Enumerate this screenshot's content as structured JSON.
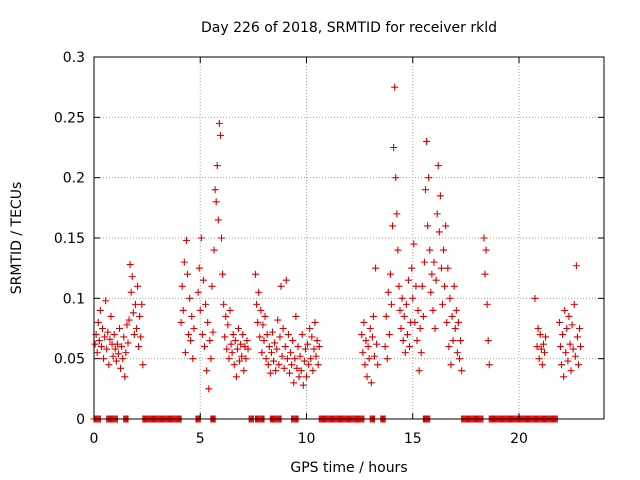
{
  "chart_data": {
    "type": "scatter",
    "title": "Day 226 of 2018, SRMTID for receiver rkld",
    "xlabel": "GPS time / hours",
    "ylabel": "SRMTID / TECUs",
    "xlim": [
      0,
      24
    ],
    "ylim": [
      0,
      0.3
    ],
    "xticks": [
      0,
      5,
      10,
      15,
      20
    ],
    "xtick_labels": [
      "0",
      "5",
      "10",
      "15",
      "20"
    ],
    "yticks": [
      0,
      0.05,
      0.1,
      0.15,
      0.2,
      0.25,
      0.3
    ],
    "ytick_labels": [
      "0",
      "0.05",
      "0.1",
      "0.15",
      "0.2",
      "0.25",
      "0.3"
    ],
    "grid": true,
    "marker": "+",
    "series": [
      {
        "name": "SRMTID",
        "color": "#dd0000",
        "points": [
          [
            0.05,
            0.062
          ],
          [
            0.1,
            0.07
          ],
          [
            0.15,
            0.055
          ],
          [
            0.2,
            0.08
          ],
          [
            0.25,
            0.065
          ],
          [
            0.3,
            0.09
          ],
          [
            0.35,
            0.06
          ],
          [
            0.4,
            0.075
          ],
          [
            0.45,
            0.05
          ],
          [
            0.5,
            0.068
          ],
          [
            0.55,
            0.098
          ],
          [
            0.6,
            0.058
          ],
          [
            0.65,
            0.072
          ],
          [
            0.7,
            0.045
          ],
          [
            0.75,
            0.066
          ],
          [
            0.8,
            0.085
          ],
          [
            0.85,
            0.062
          ],
          [
            0.9,
            0.052
          ],
          [
            0.95,
            0.07
          ],
          [
            1.0,
            0.058
          ],
          [
            1.05,
            0.048
          ],
          [
            1.1,
            0.062
          ],
          [
            1.15,
            0.054
          ],
          [
            1.2,
            0.075
          ],
          [
            1.25,
            0.042
          ],
          [
            1.3,
            0.06
          ],
          [
            1.35,
            0.05
          ],
          [
            1.4,
            0.068
          ],
          [
            1.45,
            0.035
          ],
          [
            1.5,
            0.055
          ],
          [
            1.55,
            0.078
          ],
          [
            1.6,
            0.063
          ],
          [
            1.65,
            0.082
          ],
          [
            1.7,
            0.128
          ],
          [
            1.75,
            0.105
          ],
          [
            1.8,
            0.118
          ],
          [
            1.85,
            0.088
          ],
          [
            1.9,
            0.07
          ],
          [
            1.95,
            0.095
          ],
          [
            2.0,
            0.075
          ],
          [
            2.05,
            0.11
          ],
          [
            2.1,
            0.06
          ],
          [
            2.15,
            0.085
          ],
          [
            2.2,
            0.068
          ],
          [
            2.25,
            0.095
          ],
          [
            2.3,
            0.045
          ],
          [
            4.1,
            0.08
          ],
          [
            4.15,
            0.11
          ],
          [
            4.2,
            0.09
          ],
          [
            4.25,
            0.13
          ],
          [
            4.3,
            0.055
          ],
          [
            4.35,
            0.148
          ],
          [
            4.4,
            0.12
          ],
          [
            4.45,
            0.07
          ],
          [
            4.5,
            0.1
          ],
          [
            4.55,
            0.065
          ],
          [
            4.6,
            0.085
          ],
          [
            4.65,
            0.05
          ],
          [
            4.7,
            0.075
          ],
          [
            4.9,
            0.105
          ],
          [
            4.95,
            0.125
          ],
          [
            5.0,
            0.09
          ],
          [
            5.05,
            0.15
          ],
          [
            5.1,
            0.07
          ],
          [
            5.15,
            0.115
          ],
          [
            5.2,
            0.06
          ],
          [
            5.25,
            0.095
          ],
          [
            5.3,
            0.04
          ],
          [
            5.35,
            0.08
          ],
          [
            5.4,
            0.025
          ],
          [
            5.45,
            0.065
          ],
          [
            5.5,
            0.05
          ],
          [
            5.55,
            0.11
          ],
          [
            5.6,
            0.072
          ],
          [
            5.65,
            0.14
          ],
          [
            5.7,
            0.19
          ],
          [
            5.75,
            0.18
          ],
          [
            5.8,
            0.21
          ],
          [
            5.85,
            0.165
          ],
          [
            5.9,
            0.245
          ],
          [
            5.95,
            0.235
          ],
          [
            6.0,
            0.15
          ],
          [
            6.05,
            0.12
          ],
          [
            6.1,
            0.095
          ],
          [
            6.15,
            0.068
          ],
          [
            6.2,
            0.085
          ],
          [
            6.25,
            0.058
          ],
          [
            6.3,
            0.078
          ],
          [
            6.35,
            0.05
          ],
          [
            6.4,
            0.09
          ],
          [
            6.45,
            0.062
          ],
          [
            6.5,
            0.055
          ],
          [
            6.55,
            0.07
          ],
          [
            6.6,
            0.045
          ],
          [
            6.65,
            0.065
          ],
          [
            6.7,
            0.035
          ],
          [
            6.75,
            0.058
          ],
          [
            6.8,
            0.075
          ],
          [
            6.85,
            0.048
          ],
          [
            6.9,
            0.062
          ],
          [
            6.95,
            0.052
          ],
          [
            7.0,
            0.07
          ],
          [
            7.05,
            0.04
          ],
          [
            7.1,
            0.06
          ],
          [
            7.15,
            0.05
          ],
          [
            7.2,
            0.065
          ],
          [
            7.25,
            0.058
          ],
          [
            7.6,
            0.12
          ],
          [
            7.65,
            0.095
          ],
          [
            7.7,
            0.08
          ],
          [
            7.75,
            0.105
          ],
          [
            7.8,
            0.068
          ],
          [
            7.85,
            0.09
          ],
          [
            7.9,
            0.055
          ],
          [
            7.95,
            0.078
          ],
          [
            8.0,
            0.065
          ],
          [
            8.05,
            0.085
          ],
          [
            8.1,
            0.05
          ],
          [
            8.15,
            0.07
          ],
          [
            8.2,
            0.045
          ],
          [
            8.25,
            0.06
          ],
          [
            8.3,
            0.038
          ],
          [
            8.35,
            0.055
          ],
          [
            8.4,
            0.072
          ],
          [
            8.45,
            0.048
          ],
          [
            8.5,
            0.063
          ],
          [
            8.55,
            0.04
          ],
          [
            8.6,
            0.058
          ],
          [
            8.65,
            0.082
          ],
          [
            8.7,
            0.045
          ],
          [
            8.75,
            0.068
          ],
          [
            8.8,
            0.11
          ],
          [
            8.85,
            0.052
          ],
          [
            8.9,
            0.075
          ],
          [
            8.95,
            0.042
          ],
          [
            9.0,
            0.06
          ],
          [
            9.05,
            0.115
          ],
          [
            9.1,
            0.05
          ],
          [
            9.15,
            0.07
          ],
          [
            9.2,
            0.038
          ],
          [
            9.25,
            0.055
          ],
          [
            9.3,
            0.045
          ],
          [
            9.35,
            0.065
          ],
          [
            9.4,
            0.03
          ],
          [
            9.45,
            0.05
          ],
          [
            9.5,
            0.085
          ],
          [
            9.55,
            0.042
          ],
          [
            9.6,
            0.06
          ],
          [
            9.65,
            0.035
          ],
          [
            9.7,
            0.052
          ],
          [
            9.75,
            0.04
          ],
          [
            9.8,
            0.07
          ],
          [
            9.85,
            0.028
          ],
          [
            9.9,
            0.048
          ],
          [
            9.95,
            0.058
          ],
          [
            10.0,
            0.035
          ],
          [
            10.05,
            0.062
          ],
          [
            10.1,
            0.045
          ],
          [
            10.15,
            0.075
          ],
          [
            10.2,
            0.05
          ],
          [
            10.25,
            0.068
          ],
          [
            10.3,
            0.04
          ],
          [
            10.35,
            0.058
          ],
          [
            10.4,
            0.08
          ],
          [
            10.45,
            0.052
          ],
          [
            10.5,
            0.065
          ],
          [
            10.55,
            0.045
          ],
          [
            10.6,
            0.06
          ],
          [
            12.6,
            0.07
          ],
          [
            12.65,
            0.055
          ],
          [
            12.7,
            0.08
          ],
          [
            12.75,
            0.045
          ],
          [
            12.8,
            0.065
          ],
          [
            12.85,
            0.035
          ],
          [
            12.9,
            0.06
          ],
          [
            12.95,
            0.05
          ],
          [
            13.0,
            0.075
          ],
          [
            13.05,
            0.03
          ],
          [
            13.1,
            0.068
          ],
          [
            13.15,
            0.085
          ],
          [
            13.2,
            0.052
          ],
          [
            13.25,
            0.125
          ],
          [
            13.3,
            0.062
          ],
          [
            13.35,
            0.045
          ],
          [
            13.7,
            0.06
          ],
          [
            13.75,
            0.085
          ],
          [
            13.8,
            0.05
          ],
          [
            13.85,
            0.105
          ],
          [
            13.9,
            0.07
          ],
          [
            13.95,
            0.12
          ],
          [
            14.0,
            0.095
          ],
          [
            14.05,
            0.16
          ],
          [
            14.1,
            0.225
          ],
          [
            14.15,
            0.275
          ],
          [
            14.2,
            0.2
          ],
          [
            14.25,
            0.17
          ],
          [
            14.3,
            0.14
          ],
          [
            14.35,
            0.11
          ],
          [
            14.4,
            0.09
          ],
          [
            14.45,
            0.075
          ],
          [
            14.5,
            0.1
          ],
          [
            14.55,
            0.065
          ],
          [
            14.6,
            0.085
          ],
          [
            14.65,
            0.055
          ],
          [
            14.7,
            0.095
          ],
          [
            14.75,
            0.07
          ],
          [
            14.8,
            0.115
          ],
          [
            14.85,
            0.06
          ],
          [
            14.9,
            0.08
          ],
          [
            14.95,
            0.125
          ],
          [
            15.0,
            0.1
          ],
          [
            15.05,
            0.145
          ],
          [
            15.1,
            0.08
          ],
          [
            15.15,
            0.11
          ],
          [
            15.2,
            0.065
          ],
          [
            15.25,
            0.09
          ],
          [
            15.3,
            0.04
          ],
          [
            15.35,
            0.075
          ],
          [
            15.4,
            0.055
          ],
          [
            15.45,
            0.11
          ],
          [
            15.5,
            0.085
          ],
          [
            15.55,
            0.13
          ],
          [
            15.6,
            0.19
          ],
          [
            15.65,
            0.23
          ],
          [
            15.7,
            0.16
          ],
          [
            15.75,
            0.2
          ],
          [
            15.8,
            0.14
          ],
          [
            15.85,
            0.105
          ],
          [
            15.9,
            0.12
          ],
          [
            15.95,
            0.09
          ],
          [
            16.0,
            0.13
          ],
          [
            16.05,
            0.075
          ],
          [
            16.1,
            0.115
          ],
          [
            16.15,
            0.17
          ],
          [
            16.2,
            0.21
          ],
          [
            16.25,
            0.155
          ],
          [
            16.3,
            0.185
          ],
          [
            16.35,
            0.125
          ],
          [
            16.4,
            0.095
          ],
          [
            16.45,
            0.14
          ],
          [
            16.5,
            0.11
          ],
          [
            16.55,
            0.16
          ],
          [
            16.6,
            0.08
          ],
          [
            16.65,
            0.125
          ],
          [
            16.7,
            0.06
          ],
          [
            16.75,
            0.1
          ],
          [
            16.8,
            0.045
          ],
          [
            16.85,
            0.085
          ],
          [
            16.9,
            0.065
          ],
          [
            16.95,
            0.11
          ],
          [
            17.0,
            0.075
          ],
          [
            17.05,
            0.09
          ],
          [
            17.1,
            0.055
          ],
          [
            17.15,
            0.08
          ],
          [
            17.2,
            0.05
          ],
          [
            17.25,
            0.065
          ],
          [
            17.3,
            0.04
          ],
          [
            18.35,
            0.15
          ],
          [
            18.4,
            0.12
          ],
          [
            18.45,
            0.14
          ],
          [
            18.5,
            0.095
          ],
          [
            18.55,
            0.065
          ],
          [
            18.6,
            0.045
          ],
          [
            20.75,
            0.1
          ],
          [
            20.85,
            0.06
          ],
          [
            20.9,
            0.075
          ],
          [
            20.95,
            0.05
          ],
          [
            21.0,
            0.07
          ],
          [
            21.05,
            0.058
          ],
          [
            21.1,
            0.045
          ],
          [
            21.15,
            0.062
          ],
          [
            21.2,
            0.055
          ],
          [
            21.25,
            0.068
          ],
          [
            21.9,
            0.08
          ],
          [
            21.95,
            0.06
          ],
          [
            22.0,
            0.045
          ],
          [
            22.05,
            0.07
          ],
          [
            22.1,
            0.035
          ],
          [
            22.15,
            0.09
          ],
          [
            22.2,
            0.055
          ],
          [
            22.25,
            0.075
          ],
          [
            22.3,
            0.048
          ],
          [
            22.35,
            0.085
          ],
          [
            22.4,
            0.062
          ],
          [
            22.45,
            0.04
          ],
          [
            22.5,
            0.078
          ],
          [
            22.55,
            0.058
          ],
          [
            22.6,
            0.095
          ],
          [
            22.65,
            0.052
          ],
          [
            22.7,
            0.127
          ],
          [
            22.75,
            0.068
          ],
          [
            22.8,
            0.045
          ],
          [
            22.85,
            0.075
          ],
          [
            22.9,
            0.06
          ]
        ]
      },
      {
        "name": "zero values",
        "color": "#dd0000",
        "x_ranges": [
          [
            0.0,
            0.3
          ],
          [
            0.6,
            1.1
          ],
          [
            1.4,
            1.6
          ],
          [
            2.3,
            4.1
          ],
          [
            4.8,
            5.0
          ],
          [
            5.5,
            5.7
          ],
          [
            7.3,
            7.5
          ],
          [
            7.6,
            8.0
          ],
          [
            8.3,
            8.8
          ],
          [
            9.3,
            9.6
          ],
          [
            10.6,
            10.8
          ],
          [
            10.8,
            12.7
          ],
          [
            13.0,
            13.2
          ],
          [
            13.5,
            13.7
          ],
          [
            15.5,
            15.8
          ],
          [
            17.3,
            18.3
          ],
          [
            18.6,
            20.8
          ],
          [
            20.8,
            21.8
          ]
        ]
      }
    ]
  }
}
